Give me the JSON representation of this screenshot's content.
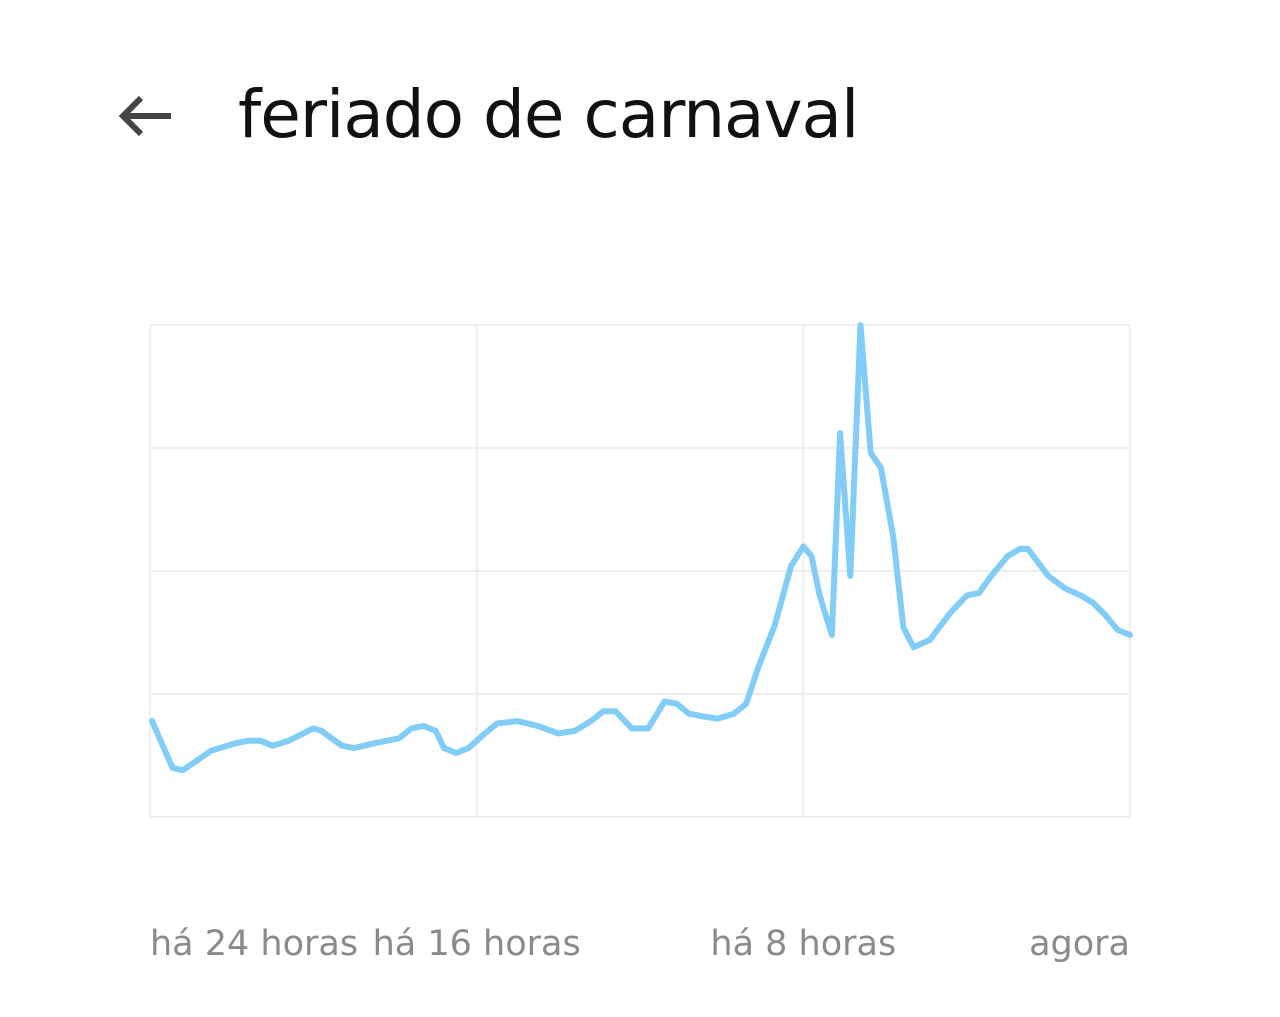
{
  "header": {
    "title": "feriado de carnaval",
    "back_icon": "arrow-back-icon"
  },
  "colors": {
    "line": "#81cdf7",
    "grid": "#eeeeee",
    "tick_text": "#8a8a8a",
    "title_text": "#111111",
    "icon": "#444444"
  },
  "chart_data": {
    "type": "line",
    "title": "",
    "xlabel": "",
    "ylabel": "",
    "x_unit": "hours ago",
    "xlim": [
      24,
      0
    ],
    "ylim": [
      0,
      100
    ],
    "grid": true,
    "x_ticks": [
      {
        "x": 24,
        "label": "há 24 horas"
      },
      {
        "x": 16,
        "label": "há 16 horas"
      },
      {
        "x": 8,
        "label": "há 8 horas"
      },
      {
        "x": 0,
        "label": "agora"
      }
    ],
    "y_ticks": [
      0,
      25,
      50,
      75,
      100
    ],
    "series": [
      {
        "points": [
          [
            23.95,
            19.5
          ],
          [
            23.45,
            10
          ],
          [
            23.2,
            9.5
          ],
          [
            22.5,
            13.5
          ],
          [
            21.9,
            15
          ],
          [
            21.6,
            15.5
          ],
          [
            21.3,
            15.5
          ],
          [
            21.0,
            14.5
          ],
          [
            20.6,
            15.5
          ],
          [
            20.0,
            18
          ],
          [
            19.8,
            17.5
          ],
          [
            19.3,
            14.5
          ],
          [
            19.0,
            14
          ],
          [
            18.5,
            15
          ],
          [
            17.9,
            16
          ],
          [
            17.6,
            18
          ],
          [
            17.3,
            18.5
          ],
          [
            17.0,
            17.5
          ],
          [
            16.8,
            14
          ],
          [
            16.5,
            13
          ],
          [
            16.2,
            14
          ],
          [
            15.8,
            17
          ],
          [
            15.5,
            19
          ],
          [
            15.0,
            19.5
          ],
          [
            14.5,
            18.5
          ],
          [
            14.0,
            17
          ],
          [
            13.6,
            17.5
          ],
          [
            13.2,
            19.5
          ],
          [
            12.9,
            21.5
          ],
          [
            12.6,
            21.5
          ],
          [
            12.2,
            18
          ],
          [
            11.8,
            18
          ],
          [
            11.4,
            23.5
          ],
          [
            11.1,
            23
          ],
          [
            10.8,
            21
          ],
          [
            10.5,
            20.5
          ],
          [
            10.1,
            20
          ],
          [
            9.7,
            21
          ],
          [
            9.4,
            23
          ],
          [
            9.1,
            30.5
          ],
          [
            8.7,
            39
          ],
          [
            8.3,
            51
          ],
          [
            8.0,
            55
          ],
          [
            7.8,
            53
          ],
          [
            7.6,
            45
          ],
          [
            7.3,
            37
          ],
          [
            7.1,
            78
          ],
          [
            6.85,
            49
          ],
          [
            6.6,
            100
          ],
          [
            6.35,
            74
          ],
          [
            6.1,
            71
          ],
          [
            5.8,
            57
          ],
          [
            5.55,
            38.5
          ],
          [
            5.3,
            34.5
          ],
          [
            4.9,
            36
          ],
          [
            4.4,
            41.5
          ],
          [
            4.0,
            45
          ],
          [
            3.7,
            45.5
          ],
          [
            3.4,
            49
          ],
          [
            3.0,
            53
          ],
          [
            2.7,
            54.5
          ],
          [
            2.5,
            54.5
          ],
          [
            2.0,
            49
          ],
          [
            1.6,
            46.5
          ],
          [
            1.2,
            45
          ],
          [
            0.9,
            43.5
          ],
          [
            0.6,
            41
          ],
          [
            0.3,
            38
          ],
          [
            0.0,
            37
          ]
        ]
      }
    ]
  }
}
